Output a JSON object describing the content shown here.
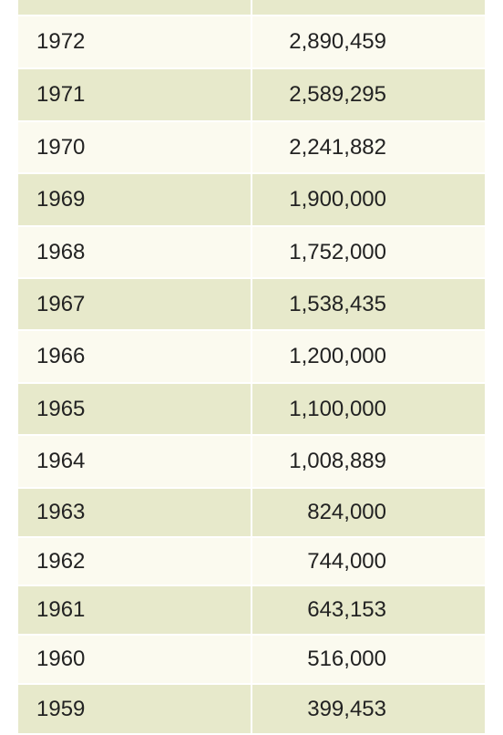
{
  "table": {
    "rows": [
      [
        "1972",
        "2,890,459"
      ],
      [
        "1971",
        "2,589,295"
      ],
      [
        "1970",
        "2,241,882"
      ],
      [
        "1969",
        "1,900,000"
      ],
      [
        "1968",
        "1,752,000"
      ],
      [
        "1967",
        "1,538,435"
      ],
      [
        "1966",
        "1,200,000"
      ],
      [
        "1965",
        "1,100,000"
      ],
      [
        "1964",
        "1,008,889"
      ],
      [
        "1963",
        "824,000"
      ],
      [
        "1962",
        "744,000"
      ],
      [
        "1961",
        "643,153"
      ],
      [
        "1960",
        "516,000"
      ],
      [
        "1959",
        "399,453"
      ]
    ]
  }
}
